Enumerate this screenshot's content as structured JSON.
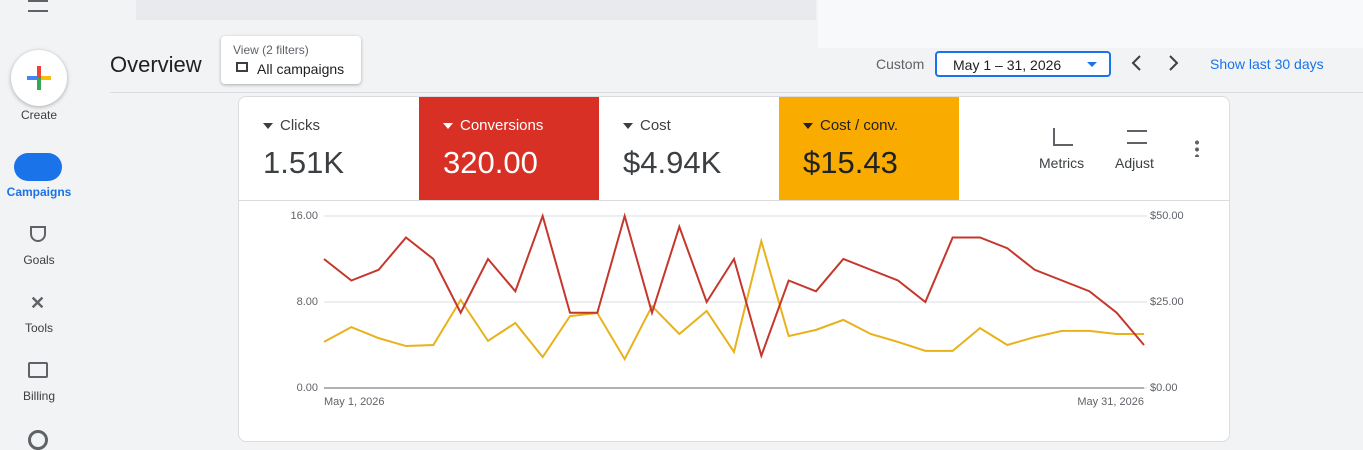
{
  "nav": [
    {
      "label": "Create"
    },
    {
      "label": "Campaigns"
    },
    {
      "label": "Goals"
    },
    {
      "label": "Tools"
    },
    {
      "label": "Billing"
    }
  ],
  "header": {
    "title": "Overview",
    "filter_caption": "View (2 filters)",
    "filter_value": "All campaigns",
    "range_label": "Custom",
    "date_range": "May 1 – 31, 2026",
    "show_last": "Show last 30 days"
  },
  "scorecards": [
    {
      "label": "Clicks",
      "value": "1.51K"
    },
    {
      "label": "Conversions",
      "value": "320.00"
    },
    {
      "label": "Cost",
      "value": "$4.94K"
    },
    {
      "label": "Cost / conv.",
      "value": "$15.43"
    }
  ],
  "tools": [
    "Metrics",
    "Adjust"
  ],
  "chart_data": {
    "type": "line",
    "categories": [
      "May 1, 2026",
      null,
      null,
      null,
      null,
      null,
      null,
      null,
      null,
      null,
      null,
      null,
      null,
      null,
      null,
      null,
      null,
      null,
      null,
      null,
      null,
      null,
      null,
      null,
      null,
      null,
      null,
      null,
      null,
      null,
      "May 31, 2026"
    ],
    "series": [
      {
        "color": "#e8b21c",
        "axis": "y2",
        "values": [
          13.4,
          17.7,
          14.5,
          12.2,
          12.5,
          25.6,
          13.7,
          18.9,
          9.0,
          20.9,
          21.8,
          8.4,
          23.8,
          15.7,
          22.4,
          10.5,
          42.7,
          15.1,
          16.9,
          19.8,
          15.7,
          13.4,
          10.8,
          10.8,
          17.4,
          12.5,
          14.8,
          16.6,
          16.6,
          15.7,
          15.7
        ]
      },
      {
        "color": "#c5372c",
        "values": [
          12,
          10,
          11,
          14,
          12,
          7,
          12,
          9,
          16,
          7,
          7,
          16,
          7,
          15,
          8,
          12,
          3,
          10,
          9,
          12,
          11,
          10,
          8,
          14,
          14,
          13,
          11,
          10,
          9,
          7,
          4
        ]
      }
    ],
    "ylim": [
      0,
      16
    ],
    "yticks": [
      {
        "value": 0,
        "label": "0.00"
      },
      {
        "value": 8,
        "label": "8.00"
      },
      {
        "value": 16,
        "label": "16.00"
      }
    ],
    "y2lim": [
      0,
      50
    ],
    "y2ticks": [
      {
        "value": 0,
        "label": "$0.00"
      },
      {
        "value": 25,
        "label": "$25.00"
      },
      {
        "value": 50,
        "label": "$50.00"
      }
    ],
    "grid": true
  }
}
